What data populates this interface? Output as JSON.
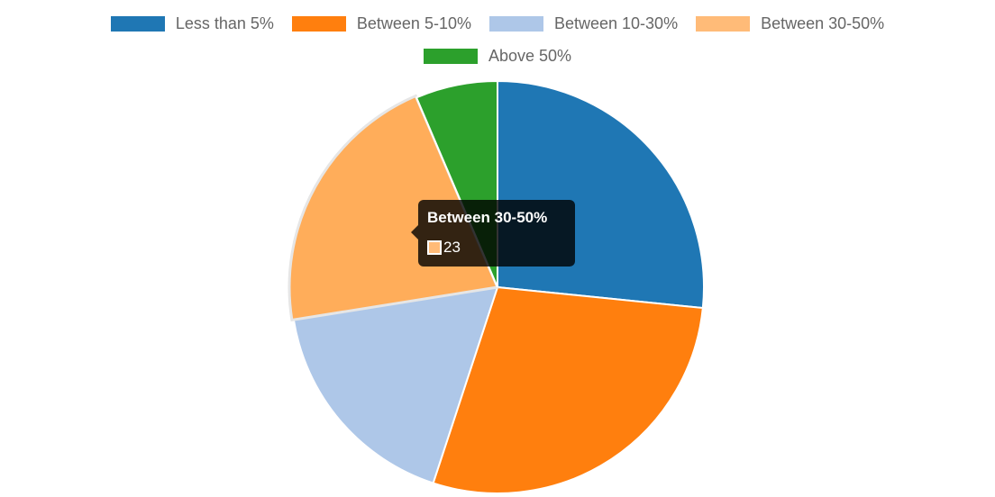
{
  "chart_data": {
    "type": "pie",
    "categories": [
      "Less than 5%",
      "Between 5-10%",
      "Between 10-30%",
      "Between 30-50%",
      "Above 50%"
    ],
    "values": [
      29,
      31,
      19,
      23,
      7
    ],
    "colors": [
      "#1f77b4",
      "#ff7f0e",
      "#aec7e8",
      "#ffbb78",
      "#2ca02c"
    ],
    "legend_position": "top",
    "highlighted_slice": "Between 30-50%"
  },
  "legend": {
    "items": [
      {
        "label": "Less than 5%",
        "color": "#1f77b4"
      },
      {
        "label": "Between 5-10%",
        "color": "#ff7f0e"
      },
      {
        "label": "Between 10-30%",
        "color": "#aec7e8"
      },
      {
        "label": "Between 30-50%",
        "color": "#ffbb78"
      },
      {
        "label": "Above 50%",
        "color": "#2ca02c"
      }
    ]
  },
  "tooltip": {
    "title": "Between 30-50%",
    "value": "23",
    "color": "#ffbb78"
  }
}
